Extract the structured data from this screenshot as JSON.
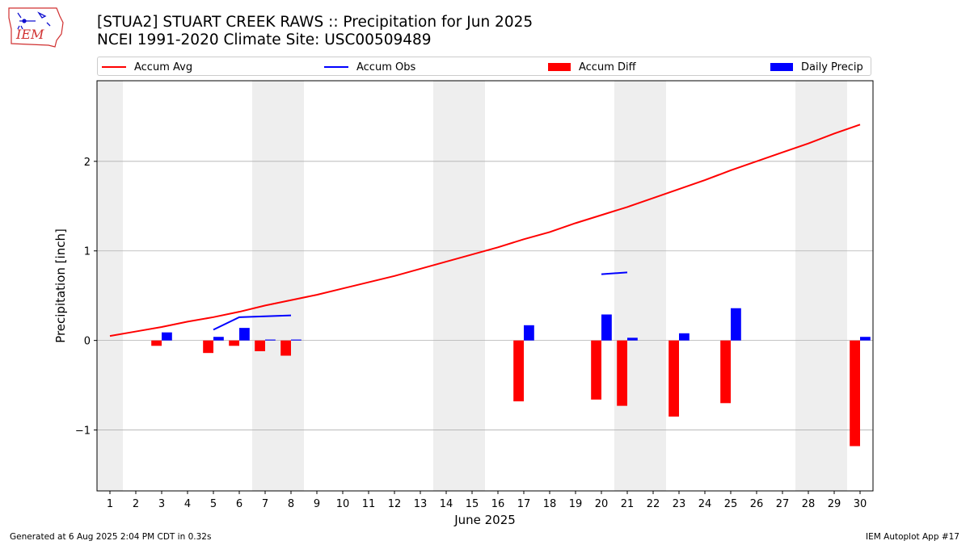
{
  "header": {
    "logo_text": "IEM",
    "title_line1": "[STUA2] STUART CREEK RAWS :: Precipitation for Jun 2025",
    "title_line2": "NCEI 1991-2020 Climate Site: USC00509489"
  },
  "legend": [
    {
      "label": "Accum Avg",
      "kind": "line",
      "color": "#ff0000"
    },
    {
      "label": "Accum Obs",
      "kind": "line",
      "color": "#0000ff"
    },
    {
      "label": "Accum Diff",
      "kind": "bar",
      "color": "#ff0000"
    },
    {
      "label": "Daily Precip",
      "kind": "bar",
      "color": "#0000ff"
    }
  ],
  "footer": {
    "left": "Generated at 6 Aug 2025 2:04 PM CDT in 0.32s",
    "right": "IEM Autoplot App #17"
  },
  "chart_data": {
    "type": "bar",
    "xlabel": "June 2025",
    "ylabel": "Precipitation [inch]",
    "xlim": [
      0.5,
      30.5
    ],
    "ylim": [
      -1.68,
      2.9
    ],
    "x_ticks": [
      "1",
      "2",
      "3",
      "4",
      "5",
      "6",
      "7",
      "8",
      "9",
      "10",
      "11",
      "12",
      "13",
      "14",
      "15",
      "16",
      "17",
      "18",
      "19",
      "20",
      "21",
      "22",
      "23",
      "24",
      "25",
      "26",
      "27",
      "28",
      "29",
      "30"
    ],
    "y_ticks": [
      {
        "value": -1,
        "label": "−1"
      },
      {
        "value": 0,
        "label": "0"
      },
      {
        "value": 1,
        "label": "1"
      },
      {
        "value": 2,
        "label": "2"
      }
    ],
    "grid": "horizontal",
    "weekend_shading": [
      [
        0.5,
        1.5
      ],
      [
        6.5,
        8.5
      ],
      [
        13.5,
        15.5
      ],
      [
        20.5,
        22.5
      ],
      [
        27.5,
        29.5
      ]
    ],
    "colors": {
      "avg": "#ff0000",
      "obs": "#0000ff",
      "diff": "#ff0000",
      "precip": "#0000ff",
      "shade": "#eeeeee",
      "grid": "#b0b0b0"
    },
    "accum_avg": [
      0.05,
      0.1,
      0.15,
      0.21,
      0.26,
      0.32,
      0.39,
      0.45,
      0.51,
      0.58,
      0.65,
      0.72,
      0.8,
      0.88,
      0.96,
      1.04,
      1.13,
      1.21,
      1.31,
      1.4,
      1.49,
      1.59,
      1.69,
      1.79,
      1.9,
      2.0,
      2.1,
      2.2,
      2.31,
      2.41
    ],
    "accum_obs": [
      {
        "day": 5,
        "value": 0.12
      },
      {
        "day": 6,
        "value": 0.26
      },
      {
        "day": 7,
        "value": 0.27
      },
      {
        "day": 8,
        "value": 0.28
      },
      {
        "day": 20,
        "value": 0.74
      },
      {
        "day": 21,
        "value": 0.76
      }
    ],
    "obs_segments": [
      [
        5,
        8
      ],
      [
        20,
        21
      ]
    ],
    "accum_diff": [
      {
        "day": 3,
        "value": -0.06
      },
      {
        "day": 5,
        "value": -0.14
      },
      {
        "day": 6,
        "value": -0.06
      },
      {
        "day": 7,
        "value": -0.12
      },
      {
        "day": 8,
        "value": -0.17
      },
      {
        "day": 17,
        "value": -0.68
      },
      {
        "day": 20,
        "value": -0.66
      },
      {
        "day": 21,
        "value": -0.73
      },
      {
        "day": 23,
        "value": -0.85
      },
      {
        "day": 25,
        "value": -0.7
      },
      {
        "day": 30,
        "value": -1.18
      }
    ],
    "daily_precip": [
      {
        "day": 3,
        "value": 0.09
      },
      {
        "day": 5,
        "value": 0.04
      },
      {
        "day": 6,
        "value": 0.14
      },
      {
        "day": 7,
        "value": 0.01
      },
      {
        "day": 8,
        "value": 0.01
      },
      {
        "day": 17,
        "value": 0.17
      },
      {
        "day": 20,
        "value": 0.29
      },
      {
        "day": 21,
        "value": 0.03
      },
      {
        "day": 23,
        "value": 0.08
      },
      {
        "day": 25,
        "value": 0.36
      },
      {
        "day": 30,
        "value": 0.04
      }
    ]
  }
}
